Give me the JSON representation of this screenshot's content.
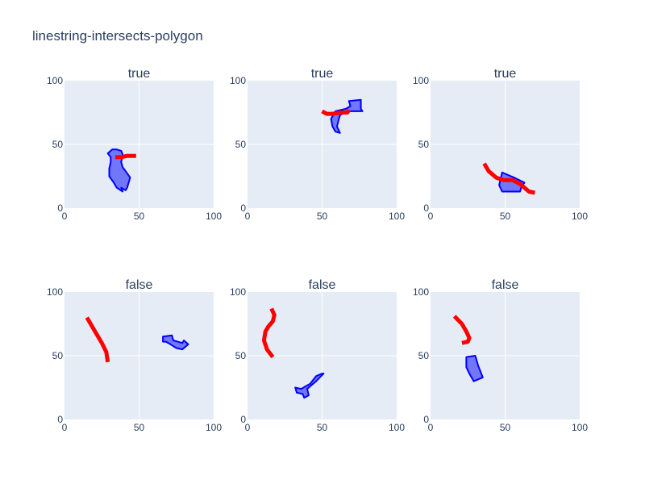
{
  "chart_data": {
    "type": "line",
    "title": "linestring-intersects-polygon",
    "xlim": [
      0,
      100
    ],
    "ylim": [
      0,
      100
    ],
    "x_ticks": [
      0,
      50,
      100
    ],
    "y_ticks": [
      0,
      50,
      100
    ],
    "grid": true,
    "colors": {
      "line": "#ff0000",
      "polygon_fill": "#0000ff",
      "polygon_edge": "#0000ff",
      "background": "#e5ecf6"
    },
    "subplots": [
      {
        "title": "true",
        "polygon": [
          [
            35,
            46
          ],
          [
            38,
            45
          ],
          [
            39,
            42
          ],
          [
            38,
            36
          ],
          [
            39,
            32
          ],
          [
            41,
            29
          ],
          [
            44,
            24
          ],
          [
            43,
            20
          ],
          [
            42,
            16
          ],
          [
            41,
            14
          ],
          [
            38,
            16
          ],
          [
            39,
            13
          ],
          [
            35,
            16
          ],
          [
            33,
            20
          ],
          [
            30,
            25
          ],
          [
            30,
            31
          ],
          [
            31,
            36
          ],
          [
            31,
            40
          ],
          [
            29,
            43
          ],
          [
            32,
            46
          ]
        ],
        "line": [
          [
            34,
            40
          ],
          [
            38,
            40
          ],
          [
            42,
            41
          ],
          [
            48,
            41
          ]
        ]
      },
      {
        "title": "true",
        "polygon": [
          [
            68,
            84
          ],
          [
            76,
            85
          ],
          [
            76,
            78
          ],
          [
            77,
            76
          ],
          [
            67,
            76
          ],
          [
            62,
            73
          ],
          [
            61,
            69
          ],
          [
            60,
            64
          ],
          [
            62,
            59
          ],
          [
            59,
            60
          ],
          [
            57,
            64
          ],
          [
            56,
            70
          ],
          [
            59,
            76
          ],
          [
            66,
            78
          ],
          [
            69,
            80
          ]
        ],
        "line": [
          [
            50,
            76
          ],
          [
            53,
            74
          ],
          [
            57,
            74
          ],
          [
            62,
            75
          ],
          [
            67,
            75
          ],
          [
            68,
            77
          ]
        ]
      },
      {
        "title": "true",
        "polygon": [
          [
            48,
            28
          ],
          [
            56,
            24
          ],
          [
            63,
            20
          ],
          [
            61,
            17
          ],
          [
            60,
            13
          ],
          [
            48,
            13
          ],
          [
            46,
            18
          ]
        ],
        "line": [
          [
            36,
            35
          ],
          [
            39,
            29
          ],
          [
            44,
            24
          ],
          [
            49,
            22
          ],
          [
            55,
            22
          ],
          [
            60,
            19
          ],
          [
            63,
            16
          ],
          [
            66,
            13
          ],
          [
            70,
            12
          ]
        ]
      },
      {
        "title": "false",
        "polygon": [
          [
            66,
            65
          ],
          [
            72,
            66
          ],
          [
            73,
            62
          ],
          [
            79,
            60
          ],
          [
            80,
            62
          ],
          [
            83,
            59
          ],
          [
            79,
            55
          ],
          [
            75,
            56
          ],
          [
            71,
            59
          ],
          [
            68,
            61
          ],
          [
            66,
            61
          ]
        ],
        "line": [
          [
            15,
            80
          ],
          [
            20,
            70
          ],
          [
            25,
            60
          ],
          [
            28,
            53
          ],
          [
            29,
            45
          ]
        ]
      },
      {
        "title": "false",
        "polygon": [
          [
            42,
            28
          ],
          [
            46,
            34
          ],
          [
            50,
            36
          ],
          [
            51,
            36
          ],
          [
            46,
            30
          ],
          [
            43,
            27
          ],
          [
            40,
            24
          ],
          [
            41,
            19
          ],
          [
            38,
            17
          ],
          [
            37,
            20
          ],
          [
            33,
            21
          ],
          [
            32,
            25
          ],
          [
            36,
            24
          ],
          [
            39,
            26
          ]
        ],
        "line": [
          [
            16,
            87
          ],
          [
            18,
            82
          ],
          [
            17,
            77
          ],
          [
            14,
            73
          ],
          [
            12,
            69
          ],
          [
            11,
            62
          ],
          [
            13,
            55
          ],
          [
            17,
            49
          ]
        ]
      },
      {
        "title": "false",
        "polygon": [
          [
            24,
            49
          ],
          [
            30,
            50
          ],
          [
            32,
            42
          ],
          [
            35,
            33
          ],
          [
            29,
            30
          ],
          [
            26,
            36
          ],
          [
            24,
            41
          ]
        ],
        "line": [
          [
            16,
            81
          ],
          [
            21,
            75
          ],
          [
            24,
            69
          ],
          [
            26,
            64
          ],
          [
            25,
            61
          ],
          [
            21,
            60
          ]
        ]
      }
    ]
  }
}
